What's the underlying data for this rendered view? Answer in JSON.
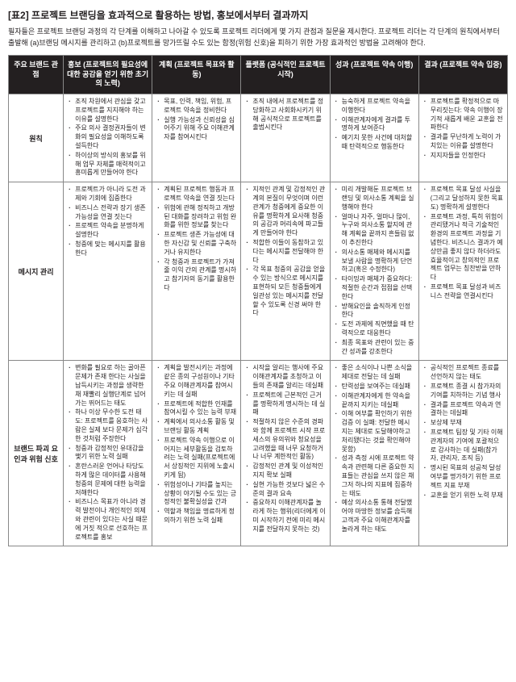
{
  "title": "[표2] 프로젝트 브랜딩을 효과적으로 활용하는 방법, 홍보에서부터 결과까지",
  "intro": "필자들은 프로젝트 브랜딩 과정의 각 단계를 이해하고 나아갈 수 있도록 프로젝트 리더에게 몇 가지 관점과 질문을 제시한다. 프로젝트 리더는 각 단계의 원칙에서부터 출발해 (a)브랜딩 메시지를 관리하고 (b)프로젝트를 망가뜨릴 수도 있는 함정(위험 신호)을 피하기 위한 가장 효과적인 방법을 고려해야 한다.",
  "headers": [
    "주요 브랜드 관점",
    "홍보\n(프로젝트의 필요성에 대한\n공감을 얻기 위한 초기의 노력)",
    "계획 (프로젝트\n목표와 활동)",
    "플랫폼 (공식적인\n프로젝트 시작)",
    "성과 (프로젝트\n약속 이행)",
    "결과 (프로젝트\n약속 입증)"
  ],
  "rows": [
    {
      "label": "원칙",
      "cells": [
        [
          "조직 차원에서 관심을 갖고 프로젝트를 지지해야 하는 이유를 설명한다",
          "주요 의사 결정권자들이 변화의 필요성을 이해하도록 설득한다",
          "하이상의 방식의 홍보를 위해 업무 자체를 매력적이고 흥미롭게 만들어야 한다"
        ],
        [
          "목표, 인력, 책임, 위험, 프로젝트 약속을 정비한다",
          "실행 가능성과 신뢰성을 심어주기 위해 주요 이해관계자를 참여시킨다"
        ],
        [
          "조직 내에서 프로젝트를 정당화하고 사회화시키기 위해 공식적으로 프로젝트를 출범시킨다"
        ],
        [
          "능숙하게 프로젝트 약속을 이행한다",
          "이해관계자에게 결과를 투명하게 보여준다",
          "예기치 못한 사건에 대처할 때 탄력적으로 행동한다"
        ],
        [
          "프로젝트를 확정적으로 마무리짓는다: 약속 이행이 장기적 새롭게 배운 교훈을 전파한다",
          "결과를 무난하게 노력이 가치있는 이유를 설명한다",
          "지지자들을 인정한다"
        ]
      ]
    },
    {
      "label": "메시지 관리",
      "cells": [
        [
          "프로젝트가 아니라 도전 과제와 기회에 집중한다",
          "비즈니스 전략과 장기 생존 가능성을 연결 짓는다",
          "프로젝트 약속을 분명하게 설명한다",
          "청중에 맞는 메시지를 활용한다"
        ],
        [
          "계획된 프로젝트 행동과 프로젝트 약속을 연결 짓는다",
          "위험에 관해 정직하고 개방된 대화를 장려하고 위험 완화를 위한 정보를 찾는다",
          "프로젝트 생존 가능성에 대한 자신감 및 신뢰를 구축하거나 유지한다",
          "각 청중과 프로젝트가 가져줄 이익 간의 관계를 명시하고 참기자의 동기를 활용한다"
        ],
        [
          "지적인 관계 및 감정적인 관계의 본질이 무엇이며 이런 관계가 청중에게 중요한 이유를 명확하게 요사해 청중의 공감과 머리속에 파고들게 만들어야 한다",
          "적합한 이들이 동참하고 있다는 메시지를 전달해야 한다",
          "각 목표 청중의 공감을 얻을 수 있는 방식으로 메시지를 표현하되 모든 청중들에게 일관성 있는 메시지를 전달할 수 있도록 신경 써야 한다"
        ],
        [
          "미리 개발해둔 프로젝트 브랜딩 및 의사소통 계획을 실행해야 한다",
          "얼마나 자주, 얼마나 많이, 누구와 의사소통 할지에 관해 계획을 끝까지 흔들림 없이 추진한다",
          "의사소통 매체와 메시지를 보낼 사람을 명확하게 단언하고(혹은 수정한다)",
          "타이밍과 매체가 중요하다: 적절한 순간과 접점을 선택한다",
          "방해요인을 솔직하게 인정한다",
          "도전 과제에 직면했을 때 탄력적으로 대응한다",
          "최종 목표와 관련이 있는 중간 성과를 강조한다"
        ],
        [
          "프로젝트 목표 달성 사실을(그리고 달성하지 못한 목표도) 명확하게 설명한다",
          "프로젝트 과정, 특히 위험이 관리됐거나 적극 기술적인 환경의 프로젝트 과정을 기념한다. 비즈니스 결과가 예상만큼 좋지 않다 하더라도 효율적이고 창의적인 프로젝트 업무는 칭찬받을 만하다",
          "프로젝트 목표 달성과 비즈니스 전략을 연결시킨다"
        ]
      ]
    },
    {
      "label": "브랜드 파괴 요인과 위험 신호",
      "cells": [
        [
          "변화를 필요로 하는 골아픈 문제가 존재 한다는 사실을 납득시키는 과정을 생략한 채 재빨리 실행단계로 넘어가는 뛰어드는 태도",
          "하나 이상 무수한 도전 태도: 프로젝트를 응호하는 사람은 실제 보다 문제가 심각한 것처럼 주장한다",
          "청중과 감정적인 유대감을 맺기 위한 노력 실패",
          "혼란스러운 언어나 타당도하게 많은 데이터를 사용해 청중의 문제에 대한 능력을 저해한다",
          "비즈니스 목표가 아니라 경력 발전이나 개인적인 의제와 관련이 있다는 사실 때문에 거짓 적으로 선호하는 프로젝트를 홍보"
        ],
        [
          "계획을 발전시키는 과정에 같은 종의 구성원이나 기타 주요 이해관계자를 참여시키는 데 실패",
          "프로젝트에 적합한 인재를 참여시킬 수 있는 능력 부재",
          "계획에서 의사소통 활동 및 브랜딩 활동 계획",
          "프로젝트 약속 이행으로 이어지는 세부활동을 검토하려는 노력 실패(프로젝트에서 상징적인 지위에 노출시키게 됨)",
          "위험성이나 기타를 높지는 상황이 야기될 수도 있는 긍정적인 불확실성을 간과",
          "역할과 책임을 명료하게 정의하기 위한 노력 실패"
        ],
        [
          "시작을 알리는 행사에 주요 이해관계자를 초청하고 이들의 존재를 알리는 데실패",
          "프로젝트에 근본적인 근거를 명확하게 명시하는 데 실패",
          "적절하지 않은 수준의 경파와 함께 프로젝트 시작 프로세스의 유의위와 청요성을 고려했을 때 너무 요청하거나 너무 계한적인 활동)",
          "감정적인 관계 및 이성적인 지지 확보 실패",
          "실현 가능한 것보다 넓은 수준의 결과 요속",
          "중요하지 이해관계자를 놀라게 하는 행위(리더에게 이미 시작하기 전에 미리 메시지를 전달하지 못하는 것)"
        ],
        [
          "좋은 소식이나 나쁜 소식을 제대로 전달는 데 실패",
          "탄력성을 보여주는 데실패",
          "이해관계자에게 한 약속을 끝까지 지키는 데실패",
          "이해 여부를 확인하기 위한 검증 이 실패: 전달한 메시지는 제대로 도달해야하고 처리됐다는 것을 확인해야 못함)",
          "성과 측정 시에 프로젝트 약속과 관련해 다른 중요한 지표들는 관심을 쓰지 않은 채 그저 하나의 지표에 집중하는 태도",
          "예상 의사소통 통해 전달했어야 마땅한 정보를 습득해 고객과 주요 이해관계자를 놀라게 하는 태도"
        ],
        [
          "공식적인 프로젝트 종료를 선언하지 않는 태도",
          "프로젝트 종결 시 참가자의 기여를 치하하는 기념 행사",
          "결과를 프로젝트 약속과 연결하는 데실패",
          "보상제 부재",
          "프로젝트 팀장 및 기타 이해관계자의 기여에 포괄적으로 감사하는 데 실패(참가자, 관리자, 조직 등)",
          "명시된 목표의 성공적 달성 여부를 명가하기 위한 프로젝트 지표 부재",
          "교훈을 얻기 위한 노력 부재"
        ]
      ]
    }
  ]
}
